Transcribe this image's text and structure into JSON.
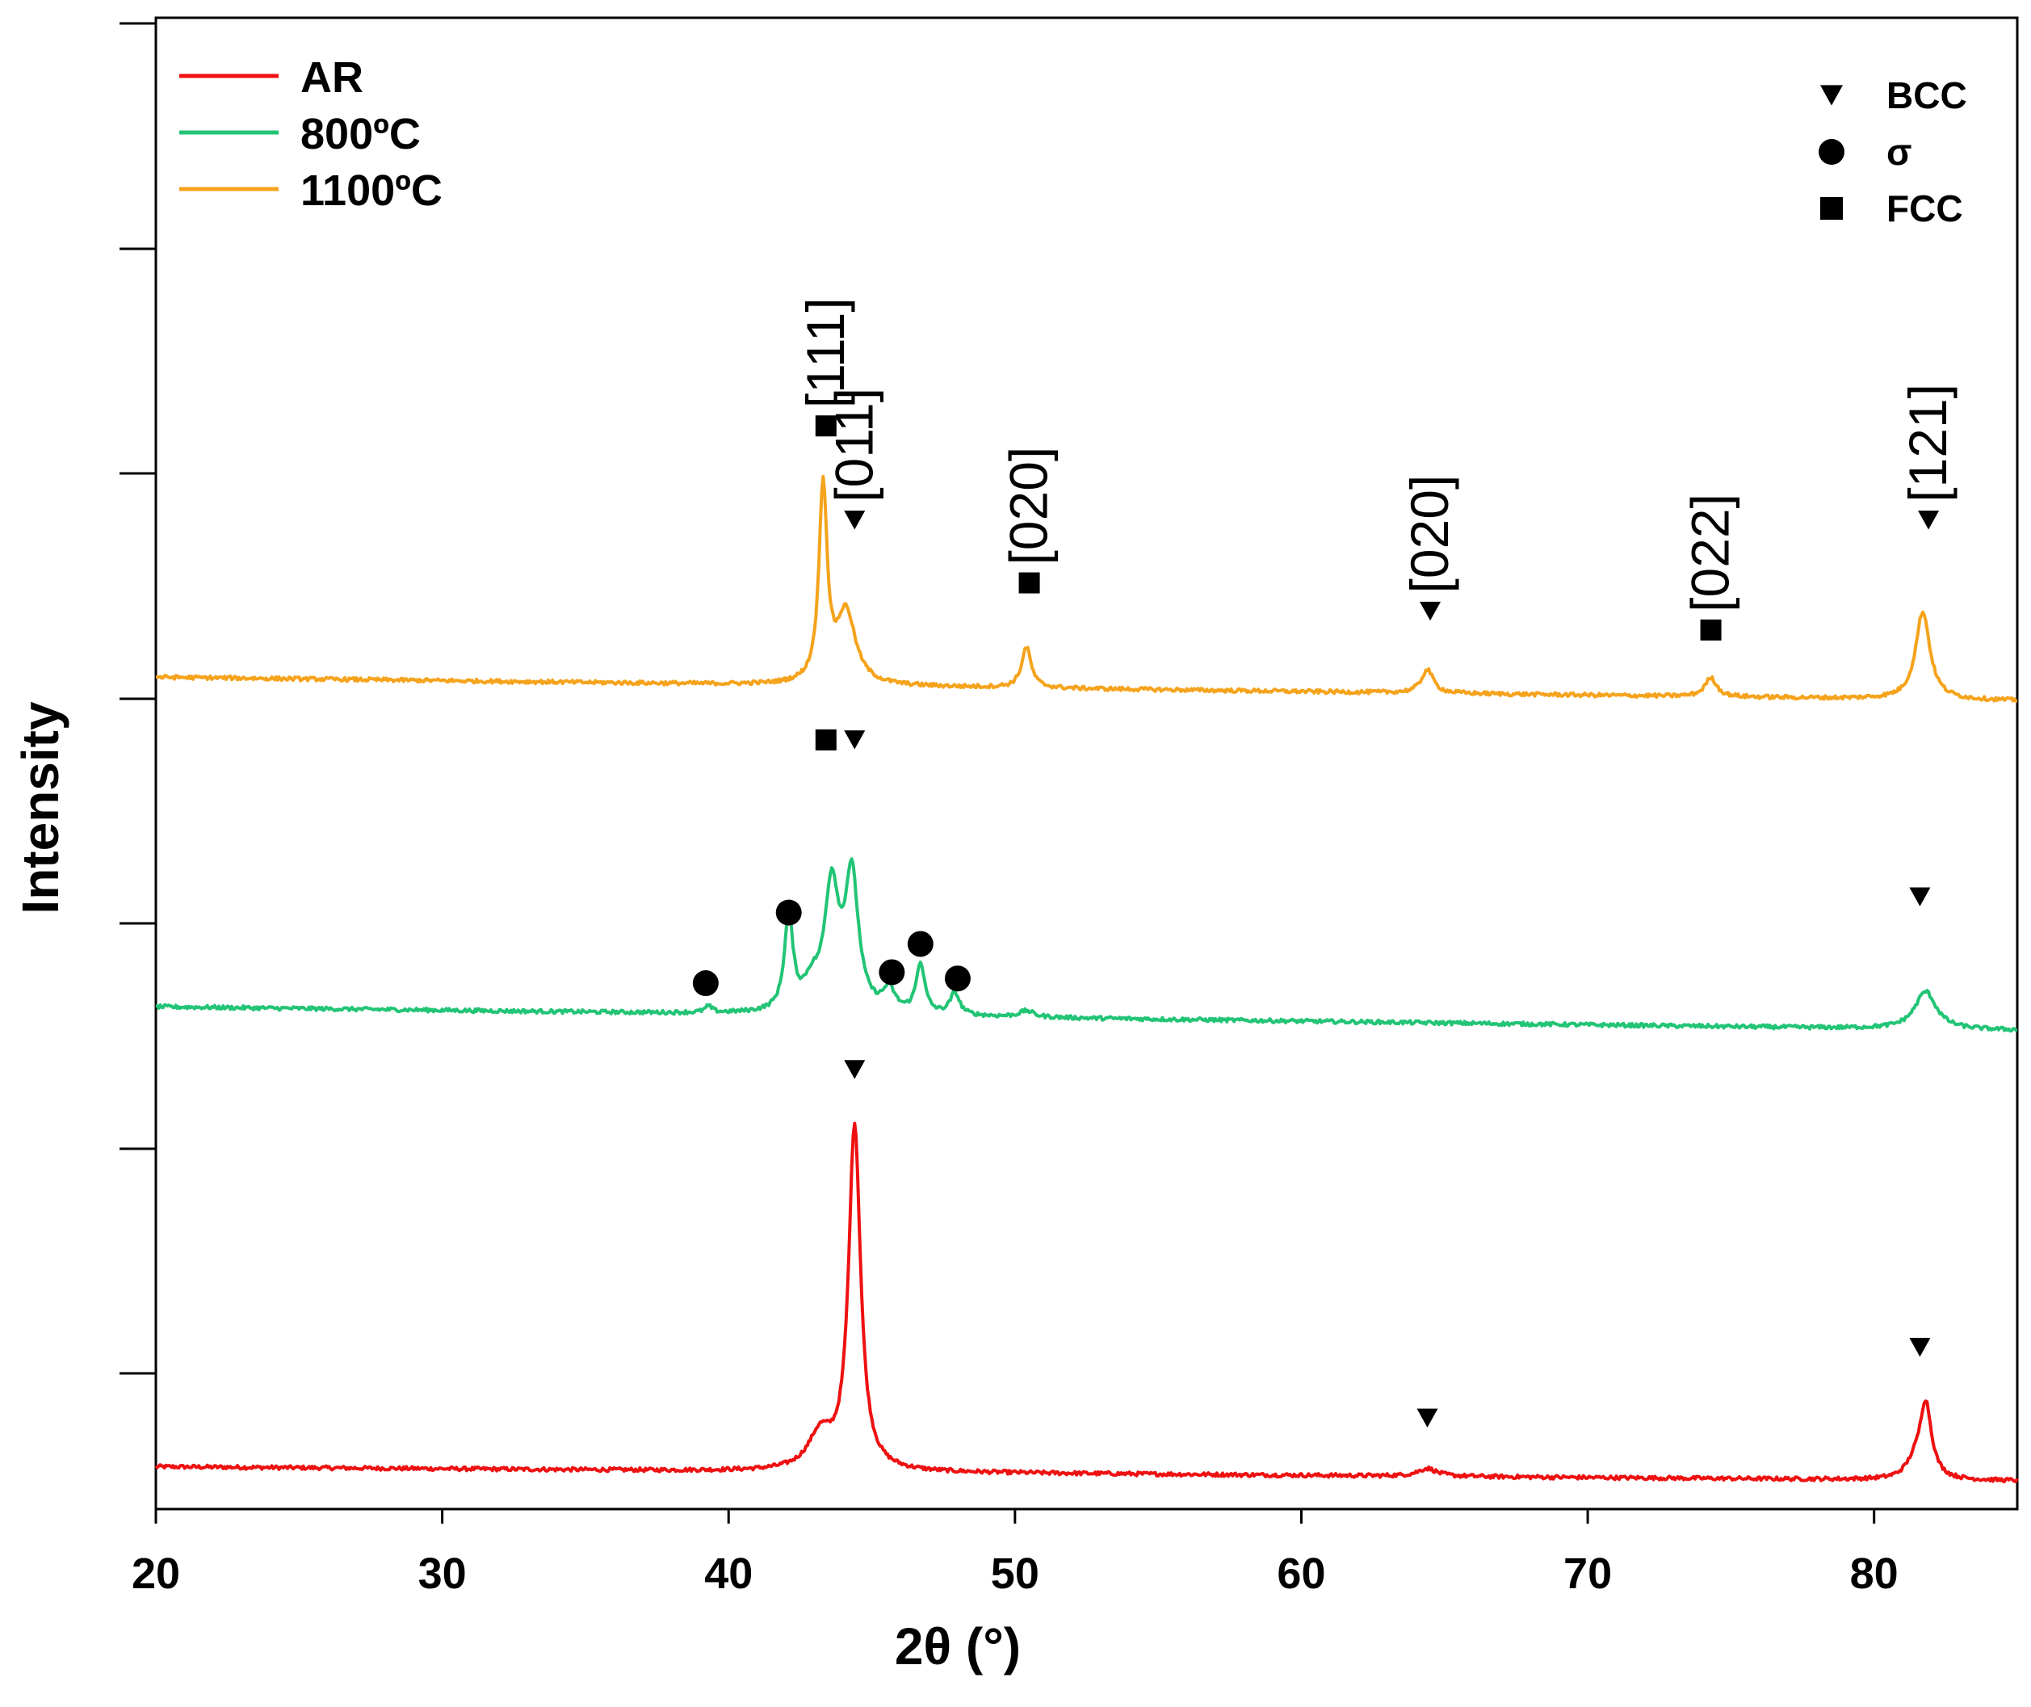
{
  "chart_data": {
    "type": "line",
    "title": "",
    "xlabel": "2θ (°)",
    "ylabel": "Intensity",
    "xlim": [
      20,
      85
    ],
    "x_ticks": [
      20,
      30,
      40,
      50,
      60,
      70,
      80
    ],
    "y_tick_labels_visible": false,
    "legend": {
      "placement": "top-left",
      "entries": [
        {
          "label": "AR",
          "color": "#ee1111"
        },
        {
          "label": "800ºC",
          "color": "#22c475"
        },
        {
          "label": "1100ºC",
          "color": "#f5a31c"
        }
      ]
    },
    "marker_legend": {
      "placement": "top-right",
      "entries": [
        {
          "symbol": "triangle-down",
          "label": "BCC"
        },
        {
          "symbol": "circle",
          "label": "σ"
        },
        {
          "symbol": "square",
          "label": "FCC"
        }
      ]
    },
    "series": [
      {
        "name": "AR",
        "color": "#ee1111",
        "baseline": [
          [
            20,
            0.27
          ],
          [
            85,
            0.18
          ]
        ],
        "noise": 0.012,
        "peaks": [
          {
            "center": 43.2,
            "height": 0.22,
            "width": 0.5
          },
          {
            "center": 44.4,
            "height": 2.2,
            "width": 0.25
          },
          {
            "center": 64.4,
            "height": 0.05,
            "width": 0.4
          },
          {
            "center": 81.4,
            "height": 0.08,
            "width": 0.35
          },
          {
            "center": 81.8,
            "height": 0.48,
            "width": 0.25
          }
        ]
      },
      {
        "name": "800ºC",
        "color": "#22c475",
        "baseline": [
          [
            20,
            3.2
          ],
          [
            85,
            3.05
          ]
        ],
        "noise": 0.012,
        "peaks": [
          {
            "center": 39.3,
            "height": 0.04,
            "width": 0.15
          },
          {
            "center": 42.1,
            "height": 0.6,
            "width": 0.18
          },
          {
            "center": 42.9,
            "height": 0.15,
            "width": 0.35
          },
          {
            "center": 43.6,
            "height": 0.78,
            "width": 0.3
          },
          {
            "center": 44.3,
            "height": 0.85,
            "width": 0.28
          },
          {
            "center": 45.6,
            "height": 0.14,
            "width": 0.25
          },
          {
            "center": 46.7,
            "height": 0.32,
            "width": 0.18
          },
          {
            "center": 47.9,
            "height": 0.14,
            "width": 0.2
          },
          {
            "center": 50.4,
            "height": 0.04,
            "width": 0.3
          },
          {
            "center": 81.8,
            "height": 0.24,
            "width": 0.45
          }
        ]
      },
      {
        "name": "1100ºC",
        "color": "#f5a31c",
        "baseline": [
          [
            20,
            5.3
          ],
          [
            85,
            5.15
          ]
        ],
        "noise": 0.012,
        "peaks": [
          {
            "center": 43.3,
            "height": 1.25,
            "width": 0.17
          },
          {
            "center": 44.1,
            "height": 0.46,
            "width": 0.4
          },
          {
            "center": 50.4,
            "height": 0.26,
            "width": 0.2
          },
          {
            "center": 64.4,
            "height": 0.15,
            "width": 0.25
          },
          {
            "center": 74.3,
            "height": 0.12,
            "width": 0.25
          },
          {
            "center": 81.7,
            "height": 0.56,
            "width": 0.3
          }
        ]
      }
    ],
    "phase_markers": [
      {
        "series": "1100ºC",
        "x": 43.4,
        "y": 6.9,
        "symbol": "square",
        "hkl": "[111]"
      },
      {
        "series": "1100ºC",
        "x": 44.4,
        "y": 6.3,
        "symbol": "triangle-down",
        "hkl": "[011]"
      },
      {
        "series": "1100ºC",
        "x": 50.5,
        "y": 5.9,
        "symbol": "square",
        "hkl": "[020]"
      },
      {
        "series": "1100ºC",
        "x": 64.5,
        "y": 5.72,
        "symbol": "triangle-down",
        "hkl": "[020]"
      },
      {
        "series": "1100ºC",
        "x": 74.3,
        "y": 5.6,
        "symbol": "square",
        "hkl": "[022]"
      },
      {
        "series": "1100ºC",
        "x": 81.9,
        "y": 6.3,
        "symbol": "triangle-down",
        "hkl": "[121]"
      },
      {
        "series": "800ºC",
        "x": 43.4,
        "y": 4.9,
        "symbol": "square"
      },
      {
        "series": "800ºC",
        "x": 44.4,
        "y": 4.9,
        "symbol": "triangle-down"
      },
      {
        "series": "800ºC",
        "x": 39.2,
        "y": 3.35,
        "symbol": "circle"
      },
      {
        "series": "800ºC",
        "x": 42.1,
        "y": 3.8,
        "symbol": "circle"
      },
      {
        "series": "800ºC",
        "x": 45.7,
        "y": 3.42,
        "symbol": "circle"
      },
      {
        "series": "800ºC",
        "x": 46.7,
        "y": 3.6,
        "symbol": "circle"
      },
      {
        "series": "800ºC",
        "x": 48.0,
        "y": 3.38,
        "symbol": "circle"
      },
      {
        "series": "800ºC",
        "x": 81.6,
        "y": 3.9,
        "symbol": "triangle-down"
      },
      {
        "series": "AR",
        "x": 44.4,
        "y": 2.8,
        "symbol": "triangle-down"
      },
      {
        "series": "AR",
        "x": 64.4,
        "y": 0.58,
        "symbol": "triangle-down"
      },
      {
        "series": "AR",
        "x": 81.6,
        "y": 1.03,
        "symbol": "triangle-down"
      }
    ],
    "ylim": [
      0,
      9.5
    ],
    "y_gridlines": false
  }
}
